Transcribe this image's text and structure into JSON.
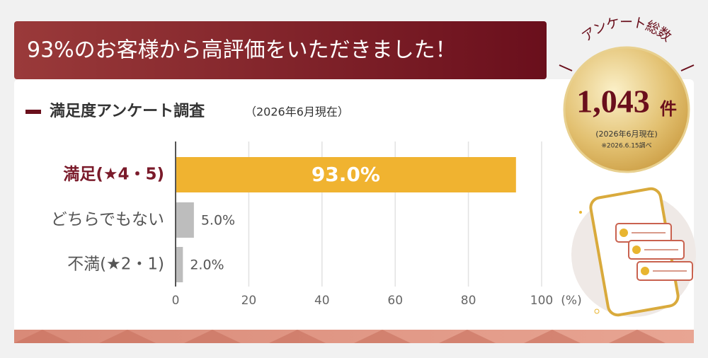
{
  "header": {
    "title": "93%のお客様から高評価をいただきました！"
  },
  "chart_data": {
    "type": "bar",
    "orientation": "horizontal",
    "title": "満足度アンケート調査",
    "subtitle": "（2026年6月現在）",
    "categories": [
      "満足(★4・5)",
      "どちらでもない",
      "不満(★2・1)"
    ],
    "values": [
      93.0,
      5.0,
      2.0
    ],
    "value_labels": [
      "93.0%",
      "5.0%",
      "2.0%"
    ],
    "colors": [
      "#f0b330",
      "#bdbdbd",
      "#bdbdbd"
    ],
    "label_colors": [
      "#7a1a2a",
      "#555555",
      "#555555"
    ],
    "xlim": [
      0,
      100
    ],
    "xticks": [
      0,
      20,
      40,
      60,
      80,
      100
    ],
    "xlabel": "(%)",
    "grid": true
  },
  "badge": {
    "heading": "アンケート総数",
    "count": "1,043",
    "unit": "件",
    "note": "(2026年6月現在)",
    "survey_date": "※2026.6.15調べ"
  }
}
